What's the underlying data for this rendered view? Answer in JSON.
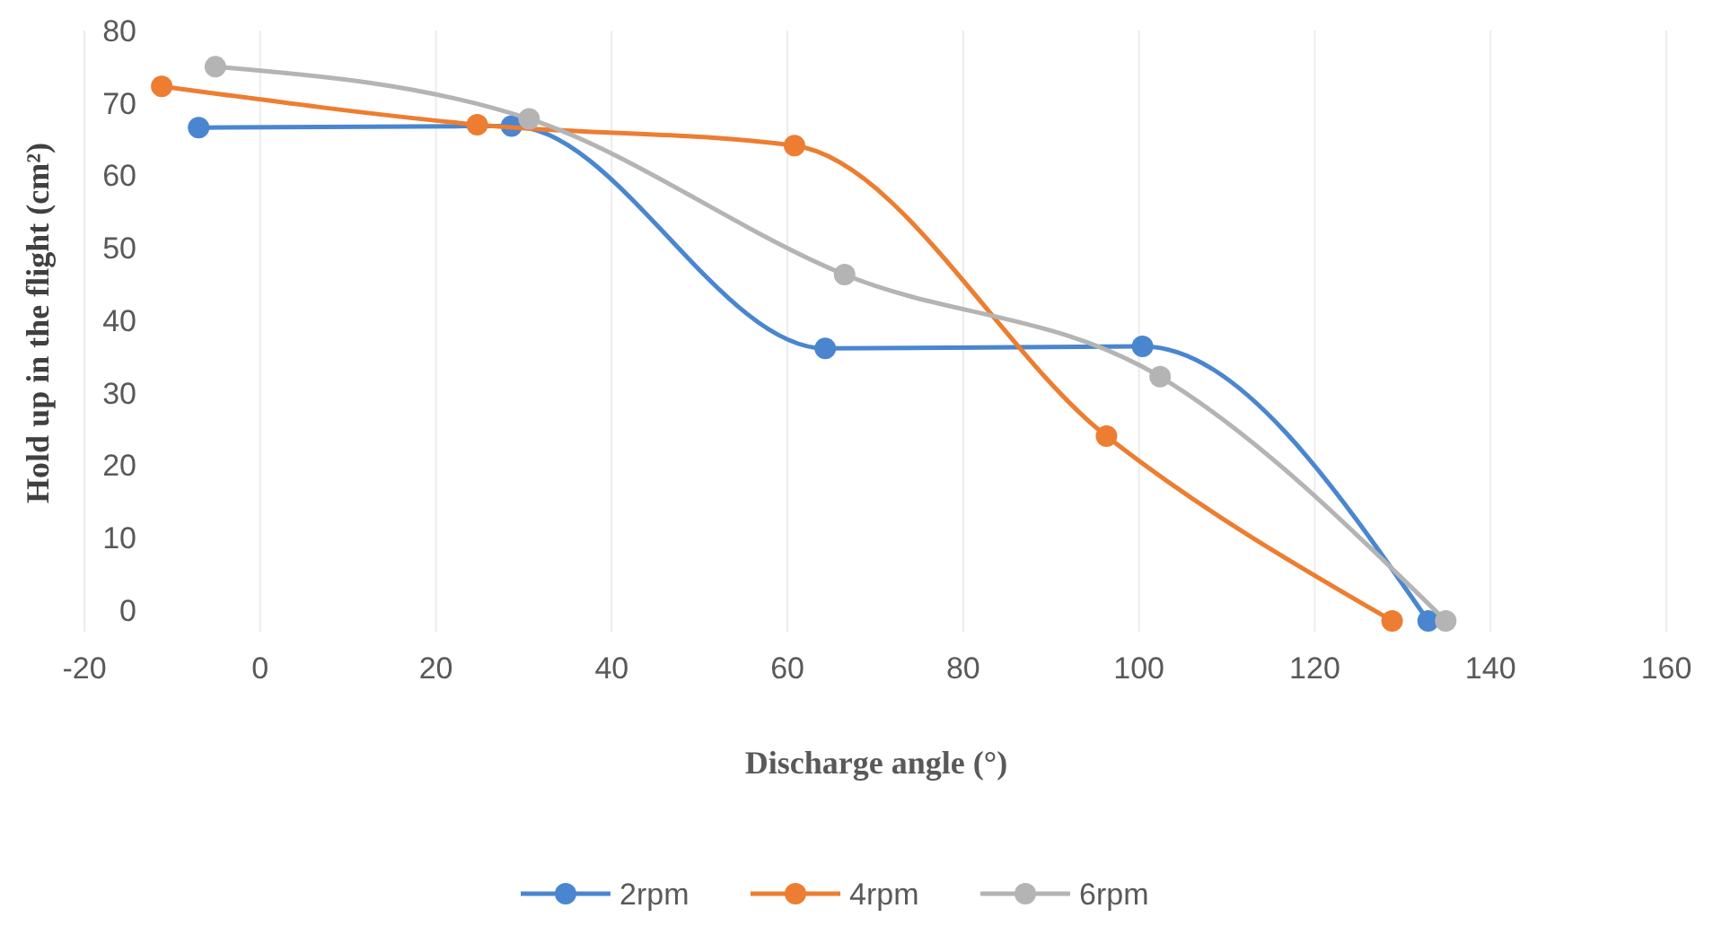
{
  "chart_data": {
    "type": "line",
    "xlabel": "Discharge angle (°)",
    "ylabel": "Hold up in the flight (cm²)",
    "xlim": [
      -20,
      160
    ],
    "xticks": [
      -20,
      0,
      20,
      40,
      60,
      80,
      100,
      120,
      140,
      160
    ],
    "ylim": [
      -3,
      80
    ],
    "yticks": [
      0,
      10,
      20,
      30,
      40,
      50,
      60,
      70,
      80
    ],
    "grid": "x",
    "legend": "bottom",
    "marker": "circle",
    "series": [
      {
        "name": "2rpm",
        "color": "#4a86d0",
        "x": [
          -7,
          28.6,
          64.3,
          100.4,
          132.9
        ],
        "values": [
          66.6,
          66.8,
          36.1,
          36.4,
          -1.5
        ]
      },
      {
        "name": "4rpm",
        "color": "#ed7d31",
        "x": [
          -11.2,
          24.7,
          60.8,
          96.3,
          128.8
        ],
        "values": [
          72.3,
          67,
          64.1,
          24,
          -1.5
        ]
      },
      {
        "name": "6rpm",
        "color": "#b4b4b4",
        "x": [
          -5.1,
          30.6,
          66.5,
          102.4,
          134.9
        ],
        "values": [
          75,
          67.8,
          46.3,
          32.2,
          -1.5
        ]
      }
    ]
  }
}
